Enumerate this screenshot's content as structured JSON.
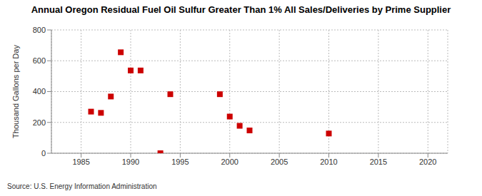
{
  "chart_data": {
    "type": "scatter",
    "title": "Annual Oregon Residual Fuel Oil Sulfur Greater Than 1% All Sales/Deliveries by Prime Supplier",
    "y_label": "Thousand Gallons per Day",
    "source": "Source: U.S. Energy Information Administration",
    "x": [
      1986,
      1987,
      1988,
      1989,
      1990,
      1991,
      1993,
      1994,
      1999,
      2000,
      2001,
      2002,
      2010
    ],
    "values": [
      270,
      262,
      368,
      655,
      537,
      537,
      0,
      383,
      383,
      238,
      178,
      148,
      128
    ],
    "color": "#cc0000",
    "marker": "square",
    "xlim": [
      1982,
      2022
    ],
    "xticks": [
      1985,
      1990,
      1995,
      2000,
      2005,
      2010,
      2015,
      2020
    ],
    "ylim": [
      0,
      800
    ],
    "yticks": [
      0,
      200,
      400,
      600,
      800
    ],
    "grid": true
  }
}
